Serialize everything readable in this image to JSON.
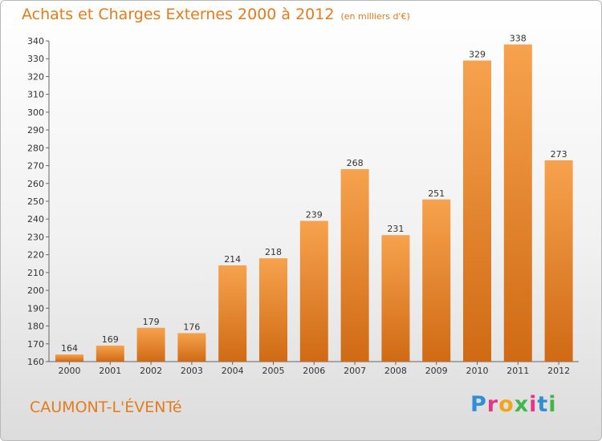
{
  "header": {
    "title": "Achats et Charges Externes 2000 à 2012",
    "subtitle": "(en milliers d'€)"
  },
  "footer": {
    "city": "CAUMONT-L'ÉVENTé",
    "logo": "Proxiti"
  },
  "colors": {
    "accent": "#e37b1f",
    "bar_light": "#f7a24e",
    "bar_dark": "#d06a14"
  },
  "chart_data": {
    "type": "bar",
    "title": "Achats et Charges Externes 2000 à 2012",
    "subtitle": "(en milliers d'€)",
    "categories": [
      "2000",
      "2001",
      "2002",
      "2003",
      "2004",
      "2005",
      "2006",
      "2007",
      "2008",
      "2009",
      "2010",
      "2011",
      "2012"
    ],
    "values": [
      164,
      169,
      179,
      176,
      214,
      218,
      239,
      268,
      231,
      251,
      329,
      338,
      273
    ],
    "ylim": [
      160,
      340
    ],
    "yticks": [
      160,
      170,
      180,
      190,
      200,
      210,
      220,
      230,
      240,
      250,
      260,
      270,
      280,
      290,
      300,
      310,
      320,
      330,
      340
    ],
    "grid": false,
    "data_labels": true
  }
}
